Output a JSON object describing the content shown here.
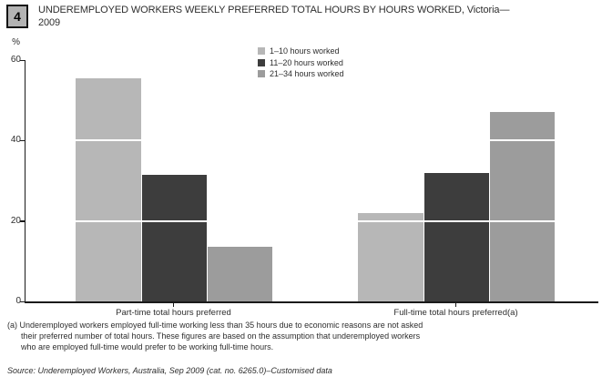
{
  "figure": {
    "number": "4",
    "title_line1": "UNDEREMPLOYED WORKERS WEEKLY PREFERRED TOTAL HOURS BY HOURS WORKED, Victoria—",
    "title_line2": "2009"
  },
  "chart_data": {
    "type": "bar",
    "title": "UNDEREMPLOYED WORKERS WEEKLY PREFERRED TOTAL HOURS BY HOURS WORKED, Victoria—2009",
    "categories": [
      "Part-time total hours preferred",
      "Full-time total hours preferred(a)"
    ],
    "series": [
      {
        "name": "1–10 hours worked",
        "color": "#b7b7b7",
        "values": [
          55.5,
          22
        ]
      },
      {
        "name": "11–20 hours worked",
        "color": "#3d3d3d",
        "values": [
          31.5,
          32
        ]
      },
      {
        "name": "21–34 hours worked",
        "color": "#9c9c9c",
        "values": [
          13.5,
          47
        ]
      }
    ],
    "xlabel": "",
    "ylabel": "%",
    "ylim": [
      0,
      60
    ],
    "yticks": [
      0,
      20,
      40,
      60
    ],
    "gridlines": [
      20,
      40
    ],
    "gridline_style": "white-lines-over-bars",
    "legend_position": "top-center",
    "axis_color": "#1a1a1a"
  },
  "footnote": {
    "lines": [
      "(a) Underemployed workers employed full-time working less than 35 hours due to economic reasons are not asked",
      "their preferred number of total hours. These figures are based on the assumption that underemployed workers",
      "who are employed full-time would prefer to be working full-time hours."
    ]
  },
  "source": "Source: Underemployed Workers, Australia, Sep 2009 (cat. no. 6265.0)–Customised data"
}
